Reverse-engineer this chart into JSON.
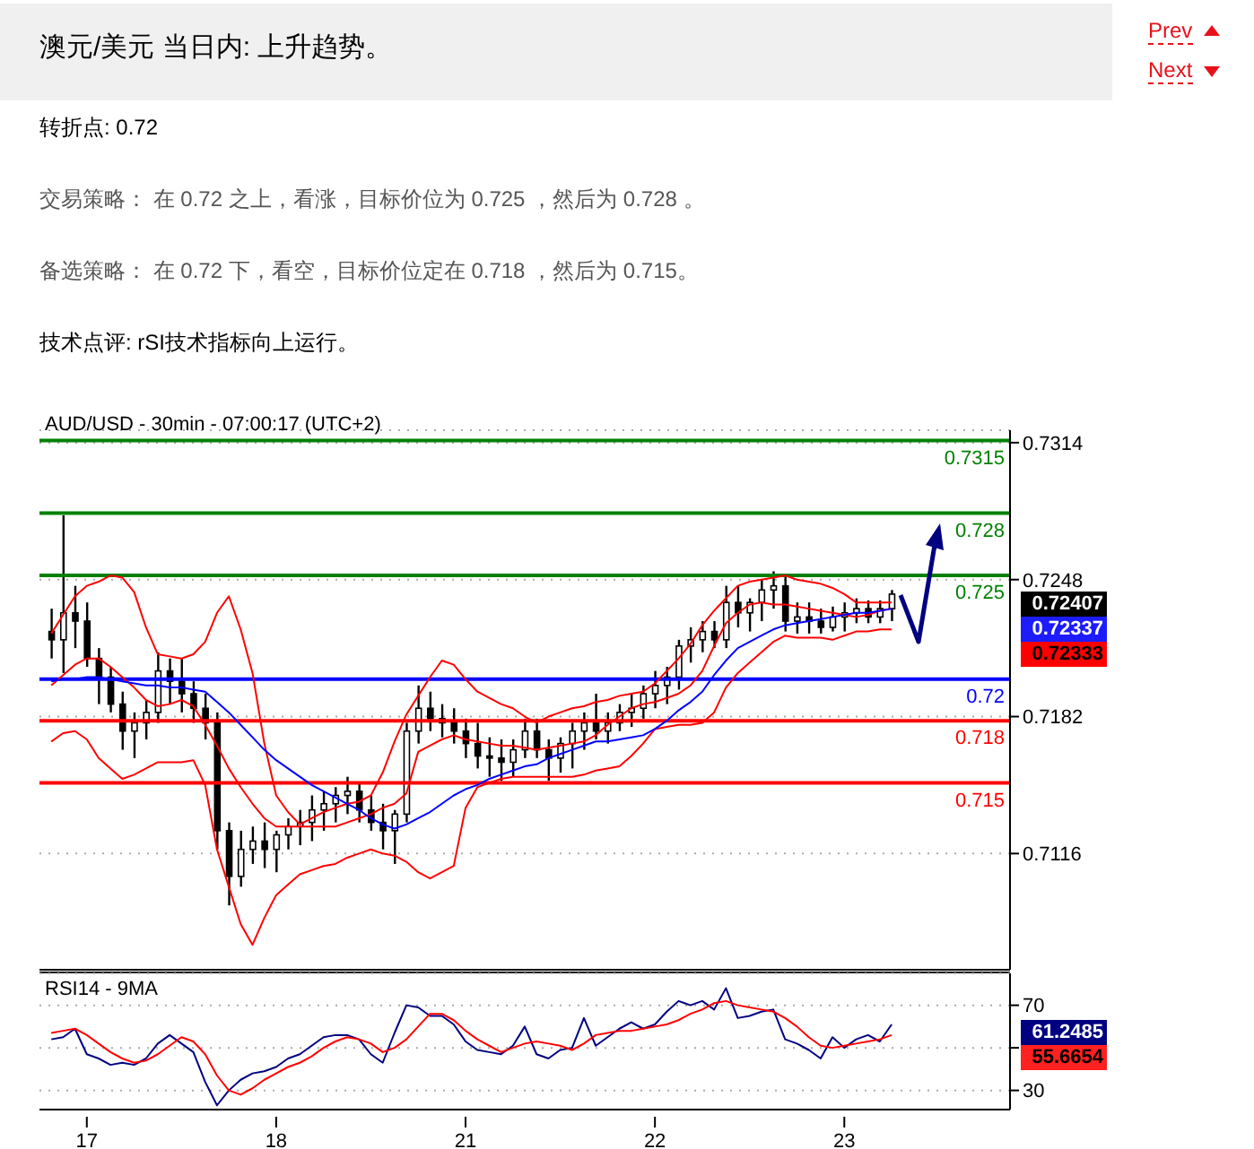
{
  "chart_data": [
    {
      "type": "candlestick",
      "title": "澳元/美元 当日内: 上升趋势。",
      "subtitle": "AUD/USD - 30min - 07:00:17 (UTC+2)",
      "color": "#000000",
      "annotations": [
        "Prev",
        "Next",
        "转折点: 0.72",
        "交易策略： 在 0.72 之上，看涨，目标价位为 0.725 ，然后为 0.728 。",
        "备选策略： 在 0.72 下，看空，目标价位定在 0.718 ，然后为 0.715。",
        "技术点评: rSI技术指标向上运行。",
        "0.72407",
        "0.72337",
        "0.72333"
      ],
      "categories": [
        null,
        null,
        null,
        null,
        "17",
        null,
        null,
        null,
        null,
        null,
        null,
        null,
        null,
        null,
        null,
        null,
        null,
        null,
        null,
        null,
        "18",
        null,
        null,
        null,
        null,
        null,
        null,
        null,
        null,
        null,
        null,
        null,
        null,
        null,
        null,
        null,
        "21",
        null,
        null,
        null,
        null,
        null,
        null,
        null,
        null,
        null,
        null,
        null,
        null,
        null,
        null,
        null,
        "22",
        null,
        null,
        null,
        null,
        null,
        null,
        null,
        null,
        null,
        null,
        null,
        null,
        null,
        null,
        null,
        "23",
        null,
        null,
        null,
        null,
        null,
        null,
        null,
        null,
        null,
        null,
        null,
        null,
        null,
        null
      ],
      "ohlc": [
        null,
        [
          0.7223,
          0.7234,
          0.721,
          0.7219
        ],
        [
          0.7219,
          0.7279,
          0.7203,
          0.7232
        ],
        [
          0.7232,
          0.7245,
          0.7215,
          0.7228
        ],
        [
          0.7228,
          0.7237,
          0.7206,
          0.721
        ],
        [
          0.721,
          0.7215,
          0.7188,
          0.7201
        ],
        [
          0.7201,
          0.7206,
          0.7184,
          0.7188
        ],
        [
          0.7188,
          0.7194,
          0.7166,
          0.7175
        ],
        [
          0.7175,
          0.7184,
          0.7162,
          0.7179
        ],
        [
          0.7179,
          0.719,
          0.7171,
          0.7184
        ],
        [
          0.7184,
          0.7213,
          0.7179,
          0.7204
        ],
        [
          0.7204,
          0.721,
          0.7188,
          0.7199
        ],
        [
          0.7199,
          0.721,
          0.7184,
          0.7193
        ],
        [
          0.7193,
          0.7199,
          0.7179,
          0.7186
        ],
        [
          0.7186,
          0.7193,
          0.7171,
          0.7179
        ],
        [
          0.7179,
          0.7184,
          0.7118,
          0.7127
        ],
        [
          0.7127,
          0.7131,
          0.7091,
          0.7105
        ],
        [
          0.7105,
          0.7127,
          0.71,
          0.7118
        ],
        [
          0.7118,
          0.7129,
          0.7111,
          0.7122
        ],
        [
          0.7122,
          0.7131,
          0.7109,
          0.7118
        ],
        [
          0.7118,
          0.7127,
          0.7107,
          0.7125
        ],
        [
          0.7125,
          0.7133,
          0.7118,
          0.7129
        ],
        [
          0.7129,
          0.7137,
          0.712,
          0.7131
        ],
        [
          0.7131,
          0.7144,
          0.7122,
          0.7137
        ],
        [
          0.7137,
          0.7146,
          0.7127,
          0.714
        ],
        [
          0.714,
          0.7148,
          0.7131,
          0.7144
        ],
        [
          0.7144,
          0.7153,
          0.7135,
          0.7146
        ],
        [
          0.7146,
          0.715,
          0.7131,
          0.7137
        ],
        [
          0.7137,
          0.7144,
          0.7127,
          0.7131
        ],
        [
          0.7131,
          0.714,
          0.7118,
          0.7127
        ],
        [
          0.7127,
          0.7137,
          0.7111,
          0.7135
        ],
        [
          0.7135,
          0.7179,
          0.7131,
          0.7175
        ],
        [
          0.7175,
          0.7197,
          0.7169,
          0.7186
        ],
        [
          0.7186,
          0.7194,
          0.7175,
          0.7181
        ],
        [
          0.7181,
          0.7188,
          0.7172,
          0.7179
        ],
        [
          0.7179,
          0.7186,
          0.7169,
          0.7175
        ],
        [
          0.7175,
          0.7181,
          0.7162,
          0.7169
        ],
        [
          0.7169,
          0.7179,
          0.7157,
          0.7163
        ],
        [
          0.7163,
          0.7172,
          0.7153,
          0.7162
        ],
        [
          0.7162,
          0.7171,
          0.7151,
          0.716
        ],
        [
          0.716,
          0.7171,
          0.7153,
          0.7166
        ],
        [
          0.7166,
          0.7181,
          0.7162,
          0.7175
        ],
        [
          0.7175,
          0.7181,
          0.7162,
          0.7166
        ],
        [
          0.7166,
          0.7171,
          0.7151,
          0.7162
        ],
        [
          0.7162,
          0.7172,
          0.7155,
          0.7169
        ],
        [
          0.7169,
          0.7179,
          0.7157,
          0.7175
        ],
        [
          0.7175,
          0.7184,
          0.7166,
          0.7179
        ],
        [
          0.7179,
          0.7193,
          0.7171,
          0.7175
        ],
        [
          0.7175,
          0.7184,
          0.7169,
          0.7179
        ],
        [
          0.7179,
          0.7188,
          0.7175,
          0.7184
        ],
        [
          0.7184,
          0.7193,
          0.7177,
          0.7186
        ],
        [
          0.7186,
          0.7197,
          0.7181,
          0.7193
        ],
        [
          0.7193,
          0.7204,
          0.7186,
          0.7197
        ],
        [
          0.7197,
          0.7206,
          0.7188,
          0.7201
        ],
        [
          0.7201,
          0.7219,
          0.7195,
          0.7216
        ],
        [
          0.7216,
          0.7225,
          0.7208,
          0.7219
        ],
        [
          0.7219,
          0.7228,
          0.7213,
          0.7223
        ],
        [
          0.7223,
          0.7228,
          0.7215,
          0.7219
        ],
        [
          0.7219,
          0.7245,
          0.7215,
          0.7237
        ],
        [
          0.7237,
          0.7245,
          0.7225,
          0.7232
        ],
        [
          0.7232,
          0.7239,
          0.7223,
          0.7237
        ],
        [
          0.7237,
          0.7248,
          0.7228,
          0.7243
        ],
        [
          0.7243,
          0.7252,
          0.7234,
          0.7245
        ],
        [
          0.7245,
          0.725,
          0.7223,
          0.7228
        ],
        [
          0.7228,
          0.7237,
          0.7222,
          0.723
        ],
        [
          0.723,
          0.7237,
          0.7222,
          0.7228
        ],
        [
          0.7228,
          0.7234,
          0.7222,
          0.7225
        ],
        [
          0.7225,
          0.7235,
          0.7223,
          0.723
        ],
        [
          0.723,
          0.7237,
          0.7223,
          0.7232
        ],
        [
          0.7232,
          0.7239,
          0.7227,
          0.7234
        ],
        [
          0.7234,
          0.7238,
          0.7227,
          0.723
        ],
        [
          0.723,
          0.7238,
          0.7227,
          0.7234
        ],
        [
          0.7234,
          0.7243,
          0.7228,
          0.7241
        ],
        null,
        null,
        null,
        null,
        null,
        null,
        null,
        null,
        null,
        null
      ],
      "series": [
        {
          "type": "line",
          "color": "#ff0000",
          "values": [
            null,
            0.7222,
            0.7231,
            0.724,
            0.7245,
            0.7247,
            0.725,
            0.7249,
            0.7242,
            0.7225,
            0.7212,
            0.7211,
            0.721,
            0.7212,
            0.7218,
            0.7232,
            0.724,
            0.7224,
            0.7203,
            0.7169,
            0.7144,
            0.7136,
            0.713,
            0.7133,
            0.7136,
            0.7138,
            0.714,
            0.7141,
            0.7144,
            0.7155,
            0.717,
            0.7183,
            0.7192,
            0.7201,
            0.7209,
            0.7207,
            0.72,
            0.7194,
            0.7191,
            0.7188,
            0.7186,
            0.7182,
            0.7179,
            0.7182,
            0.7184,
            0.7186,
            0.7187,
            0.7189,
            0.719,
            0.7192,
            0.7193,
            0.7194,
            0.7198,
            0.7204,
            0.721,
            0.7217,
            0.7226,
            0.7233,
            0.7239,
            0.7245,
            0.7247,
            0.7248,
            0.7249,
            0.725,
            0.7248,
            0.7247,
            0.7246,
            0.7244,
            0.7241,
            0.7237,
            0.7237,
            0.7237,
            0.7237,
            null,
            null,
            null,
            null,
            null,
            null,
            null,
            null,
            null,
            null
          ]
        },
        {
          "type": "line",
          "color": "#ff0000",
          "values": [
            null,
            0.7197,
            0.7202,
            0.7207,
            0.721,
            0.721,
            0.7206,
            0.7201,
            0.7196,
            0.719,
            0.7187,
            0.7188,
            0.719,
            0.7187,
            0.7178,
            0.7168,
            0.7157,
            0.7148,
            0.714,
            0.7133,
            0.7129,
            0.7129,
            0.7129,
            0.7129,
            0.7129,
            0.7129,
            0.7131,
            0.7133,
            0.7135,
            0.7138,
            0.714,
            0.7145,
            0.7165,
            0.7168,
            0.7171,
            0.7173,
            0.7171,
            0.717,
            0.7169,
            0.7168,
            0.7168,
            0.7167,
            0.7166,
            0.7167,
            0.7168,
            0.7169,
            0.717,
            0.7173,
            0.7178,
            0.7182,
            0.7186,
            0.7188,
            0.7189,
            0.7191,
            0.7193,
            0.7197,
            0.7204,
            0.7216,
            0.7227,
            0.7232,
            0.7236,
            0.7237,
            0.7236,
            0.7236,
            0.7235,
            0.7234,
            0.7233,
            0.7232,
            0.7231,
            0.723,
            0.7231,
            0.7233,
            0.7234,
            null,
            null,
            null,
            null,
            null,
            null,
            null,
            null,
            null,
            null
          ]
        },
        {
          "type": "line",
          "color": "#ff0000",
          "values": [
            null,
            0.717,
            0.7174,
            0.7175,
            0.7171,
            0.7162,
            0.7157,
            0.7152,
            0.7154,
            0.7157,
            0.716,
            0.716,
            0.716,
            0.7161,
            0.7149,
            0.7118,
            0.71,
            0.7082,
            0.7072,
            0.7085,
            0.7096,
            0.7101,
            0.7106,
            0.7108,
            0.711,
            0.7111,
            0.7114,
            0.7116,
            0.7118,
            0.7116,
            0.7115,
            0.7112,
            0.7107,
            0.7104,
            0.7107,
            0.711,
            0.7138,
            0.7148,
            0.715,
            0.7152,
            0.7153,
            0.7153,
            0.7153,
            0.7153,
            0.7153,
            0.7153,
            0.7154,
            0.7156,
            0.7157,
            0.7158,
            0.7163,
            0.7169,
            0.7176,
            0.7177,
            0.7178,
            0.7178,
            0.7179,
            0.7184,
            0.7196,
            0.7203,
            0.7208,
            0.7213,
            0.7218,
            0.7221,
            0.722,
            0.722,
            0.722,
            0.7219,
            0.7221,
            0.7223,
            0.7223,
            0.7224,
            0.7224,
            null,
            null,
            null,
            null,
            null,
            null,
            null,
            null,
            null,
            null
          ]
        },
        {
          "type": "line",
          "color": "#0000ff",
          "values": [
            null,
            0.7199,
            0.72,
            0.72,
            0.7201,
            0.7201,
            0.72,
            0.7199,
            0.7198,
            0.7197,
            0.7197,
            0.7196,
            0.7196,
            0.7195,
            0.7194,
            0.7189,
            0.7184,
            0.7178,
            0.7172,
            0.7166,
            0.7161,
            0.7157,
            0.7153,
            0.7149,
            0.7146,
            0.7143,
            0.714,
            0.7137,
            0.7133,
            0.713,
            0.7128,
            0.713,
            0.7133,
            0.7136,
            0.714,
            0.7144,
            0.7147,
            0.7149,
            0.7152,
            0.7154,
            0.7156,
            0.7158,
            0.7159,
            0.7162,
            0.7164,
            0.7166,
            0.7168,
            0.717,
            0.717,
            0.7171,
            0.7172,
            0.7173,
            0.7176,
            0.718,
            0.7185,
            0.7189,
            0.7194,
            0.7202,
            0.7209,
            0.7215,
            0.7218,
            0.7221,
            0.7224,
            0.7226,
            0.7227,
            0.7228,
            0.7229,
            0.723,
            0.7231,
            0.7232,
            0.7232,
            0.7233,
            0.7234,
            null,
            null,
            null,
            null,
            null,
            null,
            null,
            null,
            null,
            null
          ]
        }
      ],
      "ref_lines": [
        {
          "axis": "y",
          "value": 0.7315,
          "label": "0.7315",
          "color": "#008000"
        },
        {
          "axis": "y",
          "value": 0.728,
          "label": "0.728",
          "color": "#008000"
        },
        {
          "axis": "y",
          "value": 0.725,
          "label": "0.725",
          "color": "#008000"
        },
        {
          "axis": "y",
          "value": 0.72,
          "label": "0.72",
          "color": "#0000ff"
        },
        {
          "axis": "y",
          "value": 0.718,
          "label": "0.718",
          "color": "#ff0000"
        },
        {
          "axis": "y",
          "value": 0.715,
          "label": "0.715",
          "color": "#ff0000"
        }
      ],
      "ylim": [
        0.706,
        0.732
      ],
      "yticks": [
        0.7314,
        0.7248,
        0.7182,
        0.7116
      ],
      "grid": "y",
      "tick_labels": "y"
    },
    {
      "type": "line",
      "title": "RSI14 - 9MA",
      "annotations": [
        "61.2485",
        "55.6654"
      ],
      "categories": [
        null,
        null,
        null,
        null,
        "17",
        null,
        null,
        null,
        null,
        null,
        null,
        null,
        null,
        null,
        null,
        null,
        null,
        null,
        null,
        null,
        "18",
        null,
        null,
        null,
        null,
        null,
        null,
        null,
        null,
        null,
        null,
        null,
        null,
        null,
        null,
        null,
        "21",
        null,
        null,
        null,
        null,
        null,
        null,
        null,
        null,
        null,
        null,
        null,
        null,
        null,
        null,
        null,
        "22",
        null,
        null,
        null,
        null,
        null,
        null,
        null,
        null,
        null,
        null,
        null,
        null,
        null,
        null,
        null,
        "23",
        null,
        null,
        null,
        null,
        null,
        null,
        null,
        null,
        null,
        null,
        null,
        null,
        null,
        null
      ],
      "series": [
        {
          "color": "#000080",
          "values": [
            null,
            54,
            55,
            59,
            47,
            45,
            42,
            43,
            42,
            45,
            52,
            56,
            52,
            48,
            34,
            23,
            30,
            35,
            38,
            39,
            41,
            45,
            47,
            51,
            55,
            56,
            56,
            54,
            47,
            43,
            57,
            70,
            69,
            65,
            65,
            61,
            53,
            49,
            48,
            47,
            51,
            60,
            47,
            45,
            49,
            50,
            64,
            51,
            55,
            59,
            62,
            59,
            61,
            67,
            72,
            70,
            72,
            68,
            78,
            64,
            65,
            67,
            68,
            54,
            52,
            49,
            45,
            55,
            50,
            54,
            56,
            53,
            61,
            null,
            null,
            null,
            null,
            null,
            null,
            null,
            null,
            null,
            null
          ]
        },
        {
          "color": "#ff0000",
          "values": [
            null,
            57,
            58,
            59,
            56,
            52,
            48,
            45,
            43,
            44,
            47,
            51,
            55,
            53,
            47,
            37,
            30,
            28,
            31,
            35,
            38,
            41,
            43,
            46,
            50,
            53,
            55,
            54,
            52,
            48,
            50,
            54,
            60,
            66,
            66,
            63,
            58,
            54,
            51,
            48,
            50,
            52,
            53,
            52,
            51,
            49,
            52,
            56,
            57,
            58,
            58,
            59,
            60,
            61,
            63,
            66,
            68,
            71,
            72,
            70,
            69,
            68,
            67,
            64,
            60,
            55,
            51,
            50,
            51,
            52,
            53,
            54,
            56,
            null,
            null,
            null,
            null,
            null,
            null,
            null,
            null,
            null,
            null
          ]
        }
      ],
      "ylim": [
        21,
        85
      ],
      "yticks": [
        30,
        {
          "value": 50,
          "label": null
        },
        70
      ],
      "grid": "y"
    }
  ]
}
